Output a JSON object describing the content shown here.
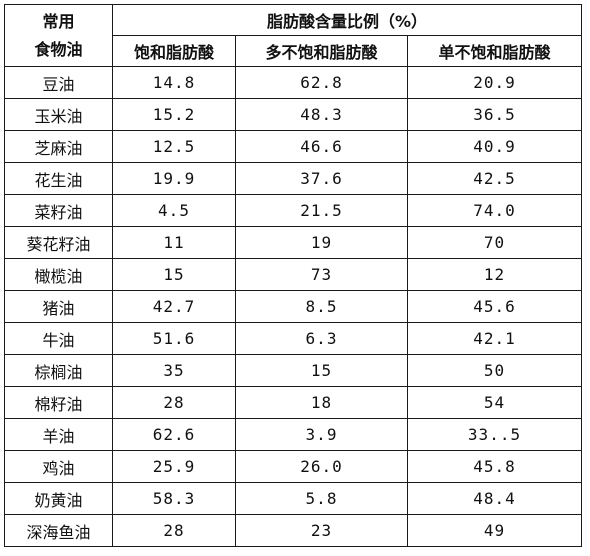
{
  "table": {
    "corner_line1": "常用",
    "corner_line2": "食物油",
    "group_header": "脂肪酸含量比例（%）",
    "columns": [
      "饱和脂肪酸",
      "多不饱和脂肪酸",
      "单不饱和脂肪酸"
    ],
    "rows": [
      {
        "name": "豆油",
        "saturated": "14.8",
        "poly": "62.8",
        "mono": "20.9"
      },
      {
        "name": "玉米油",
        "saturated": "15.2",
        "poly": "48.3",
        "mono": "36.5"
      },
      {
        "name": "芝麻油",
        "saturated": "12.5",
        "poly": "46.6",
        "mono": "40.9"
      },
      {
        "name": "花生油",
        "saturated": "19.9",
        "poly": "37.6",
        "mono": "42.5"
      },
      {
        "name": "菜籽油",
        "saturated": "4.5",
        "poly": "21.5",
        "mono": "74.0"
      },
      {
        "name": "葵花籽油",
        "saturated": "11",
        "poly": "19",
        "mono": "70"
      },
      {
        "name": "橄榄油",
        "saturated": "15",
        "poly": "73",
        "mono": "12"
      },
      {
        "name": "猪油",
        "saturated": "42.7",
        "poly": "8.5",
        "mono": "45.6"
      },
      {
        "name": "牛油",
        "saturated": "51.6",
        "poly": "6.3",
        "mono": "42.1"
      },
      {
        "name": "棕榈油",
        "saturated": "35",
        "poly": "15",
        "mono": "50"
      },
      {
        "name": "棉籽油",
        "saturated": "28",
        "poly": "18",
        "mono": "54"
      },
      {
        "name": "羊油",
        "saturated": "62.6",
        "poly": "3.9",
        "mono": "33..5"
      },
      {
        "name": "鸡油",
        "saturated": "25.9",
        "poly": "26.0",
        "mono": "45.8"
      },
      {
        "name": "奶黄油",
        "saturated": "58.3",
        "poly": "5.8",
        "mono": "48.4"
      },
      {
        "name": "深海鱼油",
        "saturated": "28",
        "poly": "23",
        "mono": "49"
      }
    ]
  }
}
